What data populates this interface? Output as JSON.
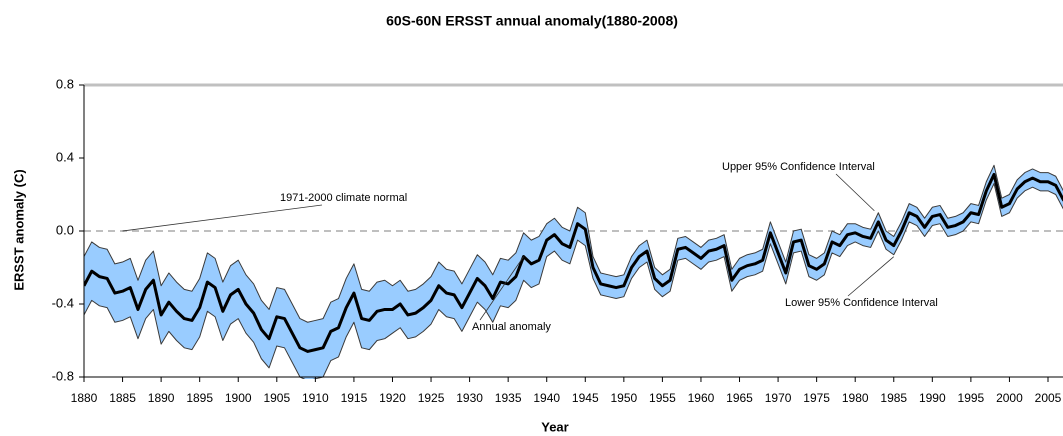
{
  "chart_data": {
    "type": "line",
    "title": "60S-60N ERSST annual anomaly(1880-2008)",
    "x_label": "Year",
    "y_label": "ERSST anomaly (C)",
    "x": [
      1880,
      1881,
      1882,
      1883,
      1884,
      1885,
      1886,
      1887,
      1888,
      1889,
      1890,
      1891,
      1892,
      1893,
      1894,
      1895,
      1896,
      1897,
      1898,
      1899,
      1900,
      1901,
      1902,
      1903,
      1904,
      1905,
      1906,
      1907,
      1908,
      1909,
      1910,
      1911,
      1912,
      1913,
      1914,
      1915,
      1916,
      1917,
      1918,
      1919,
      1920,
      1921,
      1922,
      1923,
      1924,
      1925,
      1926,
      1927,
      1928,
      1929,
      1930,
      1931,
      1932,
      1933,
      1934,
      1935,
      1936,
      1937,
      1938,
      1939,
      1940,
      1941,
      1942,
      1943,
      1944,
      1945,
      1946,
      1947,
      1948,
      1949,
      1950,
      1951,
      1952,
      1953,
      1954,
      1955,
      1956,
      1957,
      1958,
      1959,
      1960,
      1961,
      1962,
      1963,
      1964,
      1965,
      1966,
      1967,
      1968,
      1969,
      1970,
      1971,
      1972,
      1973,
      1974,
      1975,
      1976,
      1977,
      1978,
      1979,
      1980,
      1981,
      1982,
      1983,
      1984,
      1985,
      1986,
      1987,
      1988,
      1989,
      1990,
      1991,
      1992,
      1993,
      1994,
      1995,
      1996,
      1997,
      1998,
      1999,
      2000,
      2001,
      2002,
      2003,
      2004,
      2005,
      2006,
      2007,
      2008
    ],
    "series": [
      {
        "name": "Annual anomaly",
        "color": "#000000",
        "values": [
          -0.3,
          -0.22,
          -0.25,
          -0.26,
          -0.34,
          -0.33,
          -0.31,
          -0.43,
          -0.32,
          -0.27,
          -0.46,
          -0.39,
          -0.44,
          -0.48,
          -0.49,
          -0.42,
          -0.28,
          -0.31,
          -0.44,
          -0.35,
          -0.32,
          -0.4,
          -0.45,
          -0.54,
          -0.59,
          -0.47,
          -0.48,
          -0.56,
          -0.64,
          -0.66,
          -0.65,
          -0.64,
          -0.55,
          -0.53,
          -0.42,
          -0.34,
          -0.48,
          -0.49,
          -0.44,
          -0.43,
          -0.43,
          -0.4,
          -0.46,
          -0.45,
          -0.42,
          -0.38,
          -0.3,
          -0.34,
          -0.35,
          -0.42,
          -0.34,
          -0.26,
          -0.3,
          -0.37,
          -0.28,
          -0.29,
          -0.25,
          -0.14,
          -0.18,
          -0.16,
          -0.05,
          -0.02,
          -0.07,
          -0.09,
          0.04,
          0.01,
          -0.2,
          -0.29,
          -0.3,
          -0.31,
          -0.3,
          -0.2,
          -0.14,
          -0.11,
          -0.26,
          -0.3,
          -0.27,
          -0.1,
          -0.09,
          -0.12,
          -0.15,
          -0.11,
          -0.1,
          -0.08,
          -0.27,
          -0.21,
          -0.19,
          -0.18,
          -0.16,
          -0.01,
          -0.12,
          -0.23,
          -0.06,
          -0.05,
          -0.19,
          -0.21,
          -0.18,
          -0.06,
          -0.08,
          -0.02,
          -0.01,
          -0.03,
          -0.04,
          0.05,
          -0.05,
          -0.08,
          0.0,
          0.1,
          0.08,
          0.02,
          0.08,
          0.09,
          0.02,
          0.03,
          0.05,
          0.1,
          0.09,
          0.22,
          0.31,
          0.13,
          0.15,
          0.23,
          0.27,
          0.29,
          0.27,
          0.27,
          0.25,
          0.17,
          0.14
        ]
      },
      {
        "name": "Upper 95% Confidence Interval",
        "color": "#3a3a3a",
        "values": [
          -0.14,
          -0.06,
          -0.09,
          -0.1,
          -0.18,
          -0.17,
          -0.15,
          -0.27,
          -0.16,
          -0.11,
          -0.3,
          -0.23,
          -0.28,
          -0.32,
          -0.33,
          -0.26,
          -0.12,
          -0.15,
          -0.28,
          -0.19,
          -0.16,
          -0.24,
          -0.29,
          -0.38,
          -0.43,
          -0.31,
          -0.32,
          -0.4,
          -0.48,
          -0.5,
          -0.49,
          -0.48,
          -0.39,
          -0.37,
          -0.26,
          -0.18,
          -0.32,
          -0.33,
          -0.28,
          -0.27,
          -0.3,
          -0.27,
          -0.33,
          -0.32,
          -0.29,
          -0.25,
          -0.17,
          -0.21,
          -0.22,
          -0.29,
          -0.21,
          -0.13,
          -0.17,
          -0.24,
          -0.15,
          -0.16,
          -0.12,
          -0.01,
          -0.05,
          -0.03,
          0.04,
          0.07,
          0.02,
          0.0,
          0.13,
          0.1,
          -0.14,
          -0.23,
          -0.24,
          -0.25,
          -0.24,
          -0.14,
          -0.08,
          -0.05,
          -0.2,
          -0.24,
          -0.21,
          -0.04,
          -0.03,
          -0.06,
          -0.09,
          -0.05,
          -0.04,
          -0.02,
          -0.21,
          -0.15,
          -0.13,
          -0.12,
          -0.1,
          0.05,
          -0.06,
          -0.17,
          0.0,
          0.01,
          -0.13,
          -0.15,
          -0.12,
          0.0,
          -0.02,
          0.04,
          0.04,
          0.02,
          0.01,
          0.1,
          0.0,
          -0.03,
          0.05,
          0.15,
          0.13,
          0.07,
          0.13,
          0.14,
          0.07,
          0.08,
          0.1,
          0.15,
          0.14,
          0.27,
          0.36,
          0.18,
          0.2,
          0.28,
          0.32,
          0.34,
          0.32,
          0.32,
          0.3,
          0.22,
          0.19
        ]
      },
      {
        "name": "Lower 95% Confidence Interval",
        "color": "#3a3a3a",
        "values": [
          -0.46,
          -0.38,
          -0.41,
          -0.42,
          -0.5,
          -0.49,
          -0.47,
          -0.59,
          -0.48,
          -0.43,
          -0.62,
          -0.55,
          -0.6,
          -0.64,
          -0.65,
          -0.58,
          -0.44,
          -0.47,
          -0.6,
          -0.51,
          -0.48,
          -0.56,
          -0.61,
          -0.7,
          -0.75,
          -0.63,
          -0.64,
          -0.72,
          -0.8,
          -0.82,
          -0.81,
          -0.8,
          -0.71,
          -0.69,
          -0.58,
          -0.5,
          -0.64,
          -0.65,
          -0.6,
          -0.59,
          -0.56,
          -0.53,
          -0.59,
          -0.58,
          -0.55,
          -0.51,
          -0.43,
          -0.47,
          -0.48,
          -0.55,
          -0.47,
          -0.39,
          -0.43,
          -0.5,
          -0.41,
          -0.42,
          -0.38,
          -0.27,
          -0.31,
          -0.29,
          -0.14,
          -0.11,
          -0.16,
          -0.18,
          -0.05,
          -0.08,
          -0.26,
          -0.35,
          -0.36,
          -0.37,
          -0.36,
          -0.26,
          -0.2,
          -0.17,
          -0.32,
          -0.36,
          -0.33,
          -0.16,
          -0.15,
          -0.18,
          -0.21,
          -0.17,
          -0.16,
          -0.14,
          -0.33,
          -0.27,
          -0.25,
          -0.24,
          -0.22,
          -0.07,
          -0.18,
          -0.29,
          -0.12,
          -0.11,
          -0.25,
          -0.27,
          -0.24,
          -0.12,
          -0.14,
          -0.08,
          -0.06,
          -0.08,
          -0.09,
          0.0,
          -0.1,
          -0.13,
          -0.05,
          0.05,
          0.03,
          -0.03,
          0.03,
          0.04,
          -0.03,
          -0.02,
          0.0,
          0.05,
          0.04,
          0.17,
          0.26,
          0.08,
          0.1,
          0.18,
          0.22,
          0.24,
          0.22,
          0.22,
          0.2,
          0.12,
          0.09
        ]
      }
    ],
    "band_color": "#99ccff",
    "reference_line": {
      "label": "1971-2000 climate normal",
      "value": 0,
      "color": "#bfbfbf"
    },
    "xlim": [
      1880,
      2008
    ],
    "xticks": [
      1880,
      1885,
      1890,
      1895,
      1900,
      1905,
      1910,
      1915,
      1920,
      1925,
      1930,
      1935,
      1940,
      1945,
      1950,
      1955,
      1960,
      1965,
      1970,
      1975,
      1980,
      1985,
      1990,
      1995,
      2000,
      2005
    ],
    "ylim": [
      -0.8,
      0.8
    ],
    "yticks": [
      -0.8,
      -0.4,
      {
        "value": 0,
        "label": "0.0"
      },
      0.4,
      0.8
    ],
    "grid": false
  }
}
